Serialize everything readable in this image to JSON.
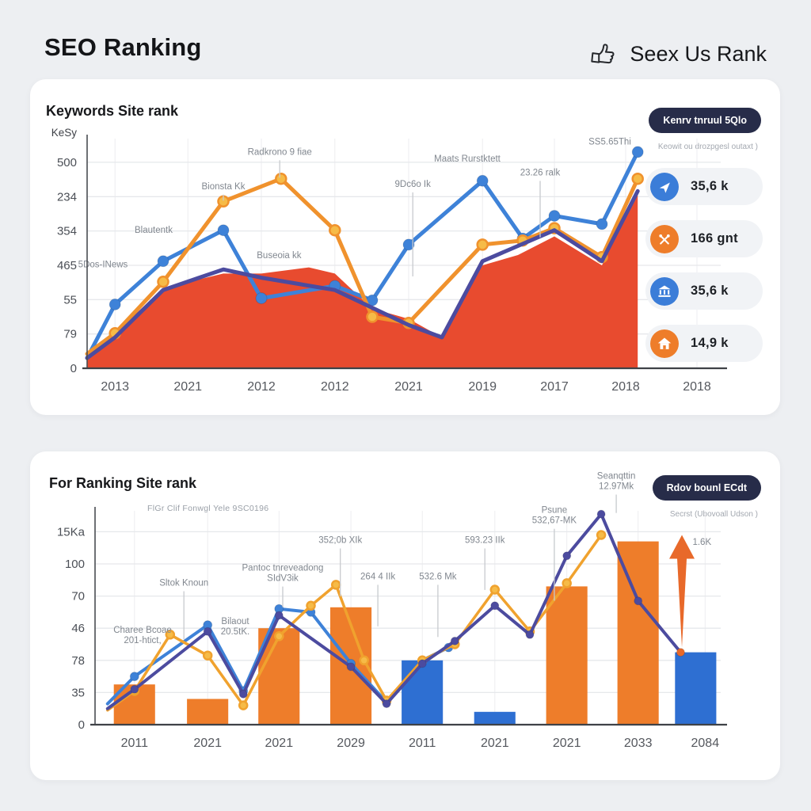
{
  "header": {
    "title": "SEO Ranking",
    "brand_label": "Seex Us Rank",
    "brand_icon": "thumbs-up-icon"
  },
  "colors": {
    "page_bg": "#edeff2",
    "panel_bg": "#ffffff",
    "button_bg": "#272c49",
    "accent_blue": "#3e82d8",
    "accent_orange": "#ee7d2a",
    "area_red": "#e84b2f",
    "line_navy": "#4c4b9f"
  },
  "panel1": {
    "title": "Keywords Site rank",
    "button_label": "Kenrv tnruul 5Qlo",
    "button_subtext": "Keowit ou drozpgesl outaxt )",
    "stats": [
      {
        "icon": "navigation-icon",
        "color": "blue",
        "value": "35,6 k"
      },
      {
        "icon": "tools-icon",
        "color": "orange",
        "value": "166 gnt"
      },
      {
        "icon": "bank-icon",
        "color": "blue",
        "value": "35,6 k"
      },
      {
        "icon": "home-icon",
        "color": "orange",
        "value": "14,9 k"
      }
    ]
  },
  "panel2": {
    "title": "For Ranking Site rank",
    "subtitle": "FlGr Clif Fonwgl Yele 9SC0196",
    "button_label": "Rdov bounl ECdt",
    "button_subtext": "Secrst (Ubovoall Udson )"
  },
  "chart_data": [
    {
      "type": "area",
      "title": "Keywords Site rank",
      "y_axis_title": "KeSy",
      "y_ticks_top_to_bottom": [
        "500",
        "234",
        "354",
        "465",
        "55",
        "79",
        "0"
      ],
      "grid_max": 100,
      "value_max": 111.5,
      "x_ticks": [
        "2013",
        "2021",
        "2012",
        "2012",
        "2021",
        "2019",
        "2017",
        "2018",
        "2018"
      ],
      "x_tick_pos": [
        4.4,
        15.9,
        27.5,
        39.1,
        50.75,
        62.4,
        73.75,
        85,
        96.25
      ],
      "area": {
        "name": "area-series",
        "color": "#e84b2f",
        "points": [
          [
            0,
            4
          ],
          [
            4.4,
            17
          ],
          [
            12,
            39
          ],
          [
            21.5,
            46
          ],
          [
            27.5,
            46
          ],
          [
            35,
            49
          ],
          [
            39.1,
            46
          ],
          [
            45,
            29
          ],
          [
            50.75,
            24
          ],
          [
            56,
            15
          ],
          [
            62.4,
            50
          ],
          [
            68,
            55
          ],
          [
            73.75,
            64
          ],
          [
            81.25,
            50
          ],
          [
            86.9,
            85
          ]
        ]
      },
      "series": [
        {
          "name": "blue-line",
          "color": "#3e82d8",
          "width": 5,
          "marker": true,
          "marker_r": 7,
          "points": [
            [
              0,
              5
            ],
            [
              4.4,
              31
            ],
            [
              12,
              52
            ],
            [
              21.5,
              67
            ],
            [
              27.5,
              34
            ],
            [
              39.1,
              40
            ],
            [
              45,
              33
            ],
            [
              50.75,
              60
            ],
            [
              62.4,
              91
            ],
            [
              68.75,
              63
            ],
            [
              73.75,
              74
            ],
            [
              81.25,
              70
            ],
            [
              86.9,
              105
            ]
          ]
        },
        {
          "name": "orange-line",
          "color": "#f0922d",
          "width": 5,
          "marker": true,
          "marker_r": 6.5,
          "marker_fill": "#f6bb47",
          "points": [
            [
              0,
              7
            ],
            [
              4.4,
              17
            ],
            [
              12,
              42
            ],
            [
              21.5,
              81
            ],
            [
              30.6,
              92
            ],
            [
              39.1,
              67
            ],
            [
              45,
              25
            ],
            [
              50.75,
              22
            ],
            [
              62.4,
              60
            ],
            [
              68.75,
              62
            ],
            [
              73.75,
              68
            ],
            [
              81.25,
              54
            ],
            [
              86.9,
              92
            ]
          ]
        },
        {
          "name": "navy-line",
          "color": "#4c4b9f",
          "width": 5,
          "marker": false,
          "points": [
            [
              0,
              5
            ],
            [
              4.4,
              15
            ],
            [
              12,
              38
            ],
            [
              21.5,
              48
            ],
            [
              27.5,
              44
            ],
            [
              39.1,
              38
            ],
            [
              50.75,
              21
            ],
            [
              56,
              15
            ],
            [
              62.4,
              52
            ],
            [
              73.75,
              67
            ],
            [
              81.25,
              52
            ],
            [
              86.9,
              86
            ]
          ]
        }
      ],
      "annotations": [
        {
          "lines": [
            "5Dos-INews"
          ],
          "x": 2.5,
          "y": 56
        },
        {
          "lines": [
            "Blautentk"
          ],
          "x": 10.5,
          "y": 41
        },
        {
          "lines": [
            "Bionsta Kk"
          ],
          "x": 21.5,
          "y": 22,
          "leader": 27
        },
        {
          "lines": [
            "Radkrono 9 fiae"
          ],
          "x": 30.4,
          "y": 7,
          "leader": 17
        },
        {
          "lines": [
            "Buseoia kk"
          ],
          "x": 30.3,
          "y": 52
        },
        {
          "lines": [
            "9Dc6o Ik"
          ],
          "x": 51.4,
          "y": 21,
          "leader": 60
        },
        {
          "lines": [
            "Maats Rurstktett"
          ],
          "x": 60,
          "y": 10
        },
        {
          "lines": [
            "23.26 ralk"
          ],
          "x": 71.5,
          "y": 16,
          "leader": 43
        },
        {
          "lines": [
            "SS5.65Thi"
          ],
          "x": 82.5,
          "y": 2.5
        }
      ]
    },
    {
      "type": "bar",
      "title": "For Ranking Site rank",
      "y_ticks_top_to_bottom": [
        "15Ka",
        "100",
        "70",
        "46",
        "78",
        "35",
        "0"
      ],
      "grid_max": 120,
      "value_max": 133,
      "x_ticks": [
        "2011",
        "2021",
        "2021",
        "2029",
        "2011",
        "2021",
        "2021",
        "2033",
        "2084"
      ],
      "x_tick_pos": [
        6.3,
        18,
        29.4,
        40.9,
        52.3,
        63.9,
        75.4,
        86.8,
        97.5
      ],
      "bars": {
        "width_pct": 6.6,
        "items": [
          {
            "x": 6.3,
            "v": 25,
            "color": "#ee7d2a"
          },
          {
            "x": 18,
            "v": 16,
            "color": "#ee7d2a"
          },
          {
            "x": 29.4,
            "v": 60,
            "color": "#ee7d2a"
          },
          {
            "x": 40.9,
            "v": 73,
            "color": "#ee7d2a"
          },
          {
            "x": 52.3,
            "v": 40,
            "color": "#2e6fd2"
          },
          {
            "x": 63.9,
            "v": 8,
            "color": "#2e6fd2"
          },
          {
            "x": 75.4,
            "v": 86,
            "color": "#ee7d2a"
          },
          {
            "x": 86.8,
            "v": 114,
            "color": "#ee7d2a"
          },
          {
            "x": 96,
            "v": 45,
            "color": "#2e6fd2"
          }
        ]
      },
      "series": [
        {
          "name": "blue-line",
          "color": "#3e82d8",
          "width": 4,
          "marker": true,
          "marker_r": 5.5,
          "points": [
            [
              2,
              13
            ],
            [
              6.3,
              30
            ],
            [
              18,
              62
            ],
            [
              23.7,
              21
            ],
            [
              29.4,
              72
            ],
            [
              34.5,
              70
            ],
            [
              40.9,
              38
            ],
            [
              46.6,
              14
            ],
            [
              52.3,
              40
            ],
            [
              56.5,
              48
            ]
          ]
        },
        {
          "name": "orange-line",
          "color": "#f0a22e",
          "width": 3.5,
          "marker": true,
          "marker_r": 5,
          "marker_fill": "#f6bb47",
          "points": [
            [
              2,
              9
            ],
            [
              6.3,
              21
            ],
            [
              12,
              56
            ],
            [
              18,
              43
            ],
            [
              23.7,
              12
            ],
            [
              29.4,
              55
            ],
            [
              34.5,
              74
            ],
            [
              38.5,
              87
            ],
            [
              43,
              40
            ],
            [
              46.6,
              15
            ],
            [
              52.3,
              40
            ],
            [
              57.5,
              50
            ],
            [
              63.9,
              84
            ],
            [
              69.5,
              58
            ],
            [
              75.4,
              88
            ],
            [
              80.9,
              118
            ]
          ]
        },
        {
          "name": "purple-line",
          "color": "#4c4b9f",
          "width": 4,
          "marker": true,
          "marker_r": 5,
          "last_marker_color": "#e8692a",
          "points": [
            [
              2,
              10
            ],
            [
              6.3,
              22
            ],
            [
              18,
              58
            ],
            [
              23.7,
              19
            ],
            [
              29.4,
              68
            ],
            [
              40.9,
              36
            ],
            [
              46.6,
              13
            ],
            [
              52.3,
              38
            ],
            [
              57.5,
              52
            ],
            [
              63.9,
              74
            ],
            [
              69.5,
              56
            ],
            [
              75.4,
              105
            ],
            [
              80.9,
              131
            ],
            [
              86.8,
              77
            ],
            [
              93.6,
              45
            ]
          ]
        }
      ],
      "arrow": {
        "x": 93.8,
        "from_v": 48,
        "to_v": 118,
        "color": "#e8692a"
      },
      "annotations": [
        {
          "lines": [
            "Charee Bcoae",
            "201-htict,"
          ],
          "x": 7.6,
          "y": 57
        },
        {
          "lines": [
            "Sltok Knoun"
          ],
          "x": 14.2,
          "y": 35,
          "leader": 60
        },
        {
          "lines": [
            "Bilaout",
            "20.5tK."
          ],
          "x": 22.4,
          "y": 53
        },
        {
          "lines": [
            "Pantoc tnreveadong",
            "SIdV3ik"
          ],
          "x": 30,
          "y": 28,
          "leader": 45
        },
        {
          "lines": [
            "352;0b XIk"
          ],
          "x": 39.2,
          "y": 15,
          "leader": 40
        },
        {
          "lines": [
            "264 4 IIk"
          ],
          "x": 45.2,
          "y": 32,
          "leader": 54
        },
        {
          "lines": [
            "532.6 Mk"
          ],
          "x": 54.8,
          "y": 32,
          "leader": 59
        },
        {
          "lines": [
            "593.23 IIk"
          ],
          "x": 62.3,
          "y": 15,
          "leader": 37
        },
        {
          "lines": [
            "Psune",
            "532,67-MK"
          ],
          "x": 73.4,
          "y": 1,
          "leader": 42
        },
        {
          "lines": [
            "Seanqttin",
            "12.97Mk"
          ],
          "x": 83.3,
          "y": -15,
          "leader": 1
        },
        {
          "lines": [
            "1.6K"
          ],
          "x": 97,
          "y": 16
        }
      ]
    }
  ]
}
